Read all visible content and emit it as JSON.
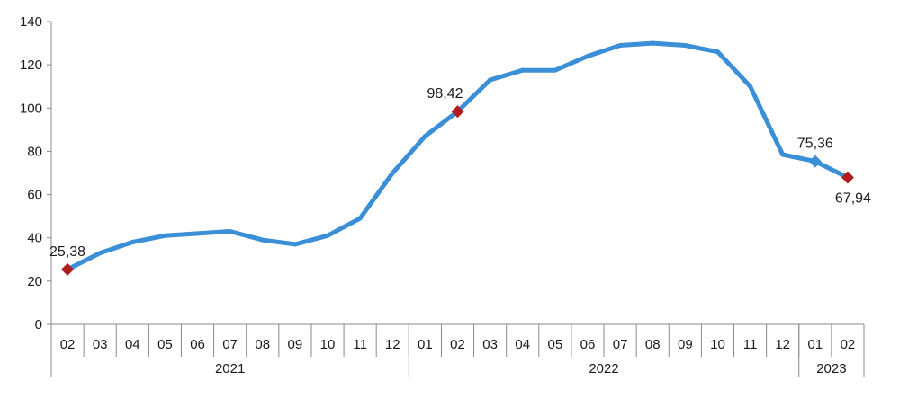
{
  "chart_data": {
    "type": "line",
    "title": "",
    "xlabel": "",
    "ylabel": "",
    "ylim": [
      0,
      140
    ],
    "y_ticks": [
      "0",
      "20",
      "40",
      "60",
      "80",
      "100",
      "120",
      "140"
    ],
    "grid": false,
    "legend": "none",
    "categories": [
      "02",
      "03",
      "04",
      "05",
      "06",
      "07",
      "08",
      "09",
      "10",
      "11",
      "12",
      "01",
      "02",
      "03",
      "04",
      "05",
      "06",
      "07",
      "08",
      "09",
      "10",
      "11",
      "12",
      "01",
      "02"
    ],
    "year_groups": [
      {
        "label": "2021",
        "start": 0,
        "end": 10
      },
      {
        "label": "2022",
        "start": 11,
        "end": 22
      },
      {
        "label": "2023",
        "start": 23,
        "end": 24
      }
    ],
    "series": [
      {
        "values": [
          25.38,
          33,
          38,
          41,
          42,
          43,
          39,
          37,
          41,
          49,
          70,
          87,
          98.42,
          113,
          117.5,
          117.5,
          124,
          129,
          130,
          129,
          126,
          110,
          78.5,
          75.36,
          67.94
        ],
        "color": "#3a8fd6"
      }
    ],
    "markers": [
      {
        "index": 0,
        "label": "25,38",
        "color": "#b01c1c",
        "label_pos": "above"
      },
      {
        "index": 12,
        "label": "98,42",
        "color": "#b01c1c",
        "label_pos": "above-left"
      },
      {
        "index": 23,
        "label": "75,36",
        "color": "#3a8fd6",
        "label_pos": "above"
      },
      {
        "index": 24,
        "label": "67,94",
        "color": "#b01c1c",
        "label_pos": "below"
      }
    ]
  }
}
